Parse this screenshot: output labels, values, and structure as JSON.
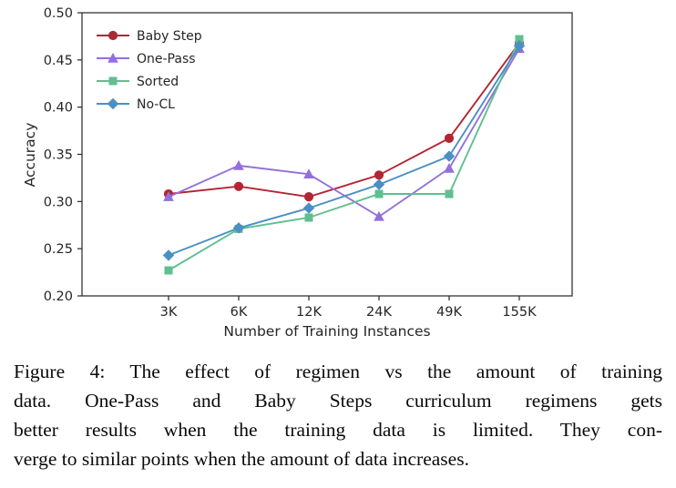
{
  "figure": {
    "caption_lines": [
      "Figure 4: The effect of regimen vs the amount of training",
      "data. One-Pass and Baby Steps curriculum regimens gets",
      "better results when the training data is limited. They con-",
      "verge to similar points when the amount of data increases."
    ]
  },
  "chart_data": {
    "type": "line",
    "title": "",
    "xlabel": "Number of Training Instances",
    "ylabel": "Accuracy",
    "categories": [
      "3K",
      "6K",
      "12K",
      "24K",
      "49K",
      "155K"
    ],
    "y_ticks": [
      0.2,
      0.25,
      0.3,
      0.35,
      0.4,
      0.45,
      0.5
    ],
    "ylim": [
      0.2,
      0.5
    ],
    "grid": false,
    "legend_position": "upper left",
    "axis_color": "#262626",
    "series": [
      {
        "name": "Baby Step",
        "color": "#b42534",
        "marker": "circle",
        "values": [
          0.308,
          0.316,
          0.305,
          0.328,
          0.367,
          0.468
        ]
      },
      {
        "name": "One-Pass",
        "color": "#9370db",
        "marker": "triangle",
        "values": [
          0.305,
          0.338,
          0.329,
          0.284,
          0.335,
          0.462
        ]
      },
      {
        "name": "Sorted",
        "color": "#5fbf8f",
        "marker": "square",
        "values": [
          0.227,
          0.271,
          0.283,
          0.308,
          0.308,
          0.472
        ]
      },
      {
        "name": "No-CL",
        "color": "#4a90c2",
        "marker": "diamond",
        "values": [
          0.243,
          0.272,
          0.293,
          0.318,
          0.348,
          0.465
        ]
      }
    ]
  }
}
